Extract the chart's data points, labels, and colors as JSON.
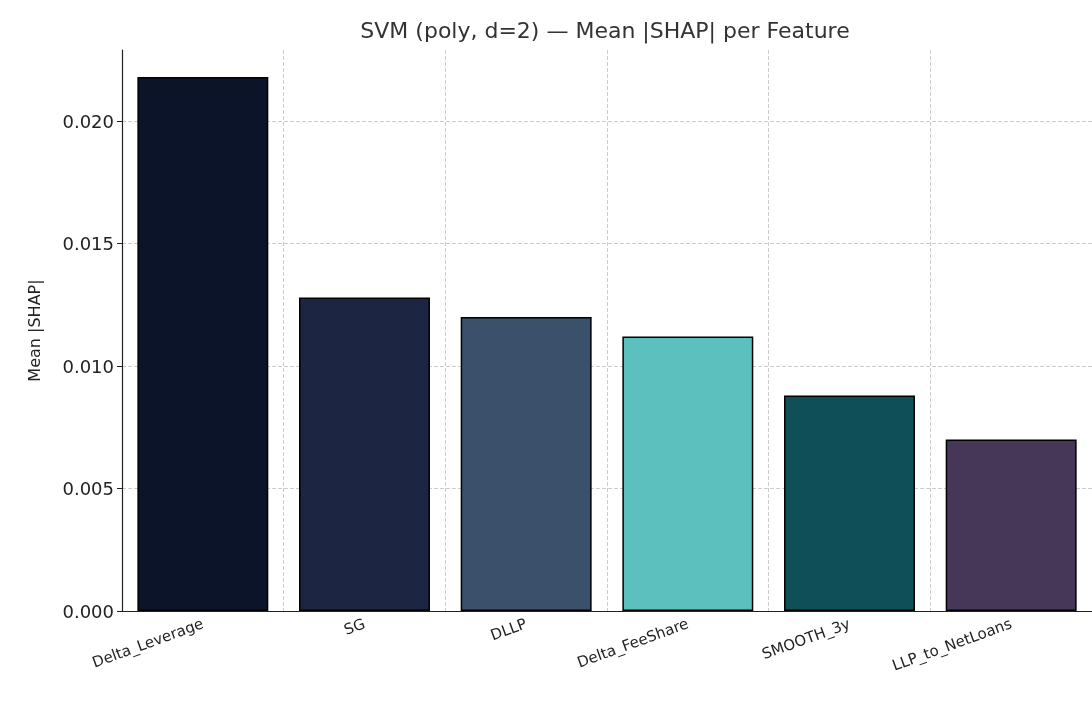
{
  "chart_data": {
    "type": "bar",
    "title": "SVM (poly, d=2) — Mean |SHAP| per Feature",
    "ylabel": "Mean |SHAP|",
    "categories": [
      "Delta_Leverage",
      "SG",
      "DLLP",
      "Delta_FeeShare",
      "SMOOTH_3y",
      "LLP_to_NetLoans"
    ],
    "values": [
      0.0218,
      0.0128,
      0.012,
      0.0112,
      0.0088,
      0.007
    ],
    "colors": [
      "#0b1428",
      "#1c2541",
      "#3a506b",
      "#5bc0be",
      "#0f5058",
      "#463658"
    ],
    "ylim": [
      0,
      0.0229
    ],
    "yticks": [
      {
        "value": 0,
        "label": "0.000"
      },
      {
        "value": 0.005,
        "label": "0.005"
      },
      {
        "value": 0.01,
        "label": "0.010"
      },
      {
        "value": 0.015,
        "label": "0.015"
      },
      {
        "value": 0.02,
        "label": "0.020"
      }
    ],
    "grid": true
  }
}
